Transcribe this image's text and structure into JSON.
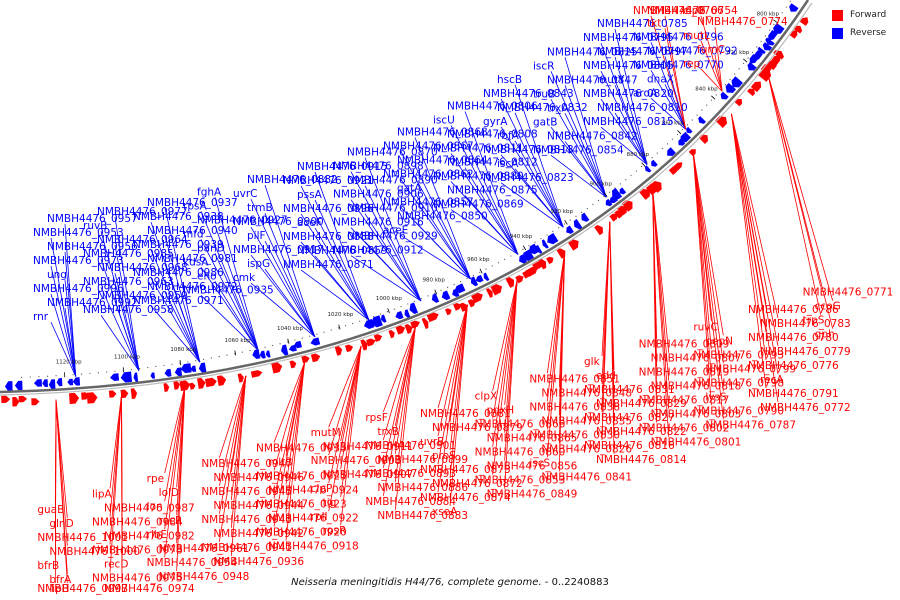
{
  "legend": {
    "forward_label": "Forward",
    "reverse_label": "Reverse",
    "forward_color": "#ff0000",
    "reverse_color": "#0000ff"
  },
  "caption": {
    "species": "Neisseria meningitidis H44/76, complete genome.",
    "range": " - 0..2240883"
  },
  "scale": {
    "start_kbp": 1120,
    "end_kbp": 800,
    "step_kbp": 20,
    "unit": "kbp"
  },
  "genes_top": [
    "rnr",
    "NMBH4476_0992",
    "NMBH4476_0996",
    "ung",
    "NMBH4476_0973",
    "NMBH4476_0956",
    "NMBH4476_0953",
    "NMBH4476_0957",
    "NMBH4476_0958",
    "NMBH4476_0959",
    "NMBH4476_0963",
    "NMBH4476_0968",
    "NMBH4476_0985",
    "NMBH4476_0964",
    "ruvB",
    "NMBH4476_0977",
    "NMBH4476_0971",
    "NMBH4476_0972",
    "NMBH4476_0986",
    "NMBH4476_0981",
    "NMBH4476_0939",
    "NMBH4476_0940",
    "NMBH4476_0938",
    "NMBH4476_0937",
    "NMBH4476_0935",
    "eno",
    "kdsA",
    "panD",
    "mfd",
    "NMBH4476_0927",
    "rpsA",
    "fghA",
    "cmk",
    "ispG",
    "NMBH4476_0917",
    "pilF",
    "NMBH4476_0900",
    "trmB",
    "uvrC",
    "NMBH4476_0882",
    "NMBH4476_0871",
    "NMBH4476_0859",
    "NMBH4476_0888",
    "aceF",
    "NMBH4476_0896",
    "pssA",
    "NMBH4476_0921",
    "NMBH4476_0915",
    "NMBH4476_0912",
    "NMBH4476_0929",
    "NMBH4476_0916",
    "NMBH4476_0910",
    "NMBH4476_0906",
    "NMBH4476_0890",
    "NMBH4476_0898",
    "NMBH4476_0870",
    "aceE",
    "NMBH4476_0850",
    "NMBH4476_0857",
    "gatA",
    "NMBH4476_0862",
    "NMBH4476_0864",
    "NMBH4476_0867",
    "NMBH4476_0868",
    "NMBH4476_0869",
    "NMBH4476_0875",
    "NMBH4476_0880",
    "NMBH4476_0812",
    "NMBH4476_0811",
    "NMBH4476_0808",
    "iscU",
    "NMBH4476_0806",
    "NMBH4476_0823",
    "iscA",
    "NMBH4476_0813",
    "rbfA",
    "gyrA",
    "NMBH4476_0832",
    "NMBH4476_0843",
    "hscB",
    "NMBH4476_0854",
    "NMBH4476_0842",
    "gatB",
    "trxA",
    "truB",
    "NMBH4476_0847",
    "iscR",
    "NMBH4476_0825",
    "NMBH4476_0815",
    "NMBH4476_0810",
    "NMBH4476_0820",
    "mutY",
    "NMBH4476_0805",
    "NMBH4476_0797",
    "NMBH4476_0795",
    "NMBH4476_0785",
    "aroA",
    "dnaX",
    "NMBH4476_0770",
    "NMBH4476_0792",
    "NMBH4476_0796",
    "tkt",
    "NMBH4476_0766",
    "NMBH4476_0754",
    "rep",
    "fumC",
    "mutL",
    "NMBH4476_0774",
    "clpB"
  ],
  "genes_bottom": [
    "guaB",
    "glnD",
    "NMBH4476_1001",
    "NMBH4476_1000",
    "bfrB",
    "bfrA",
    "NMBH4476_0997",
    "lipB",
    "lipA",
    "NMBH4476_0987",
    "NMBH4476_0984",
    "NMBH4476_0982",
    "NMBH4476_0978",
    "recD",
    "NMBH4476_0975",
    "NMBH4476_0974",
    "rpe",
    "lolD",
    "lon",
    "recR",
    "ribE",
    "NMBH4476_0961",
    "NMBH4476_0954",
    "NMBH4476_0948",
    "NMBH4476_0947",
    "NMBH4476_0946",
    "NMBH4476_0945",
    "NMBH4476_0944",
    "NMBH4476_0943",
    "NMBH4476_0942",
    "NMBH4476_0941",
    "NMBH4476_0936",
    "NMBH4476_0933",
    "mltB",
    "NMBH4476_0925",
    "NMBH4476_0924",
    "NMBH4476_0923",
    "NMBH4476_0922",
    "NMBH4476_0920",
    "NMBH4476_0918",
    "mutM",
    "NMBH4476_0911",
    "NMBH4476_0908",
    "NMBH4476_0907",
    "clpP",
    "tig",
    "rplI",
    "rpsR",
    "rpsF",
    "trxB",
    "NMBH4476_0901",
    "NMBH4476_0899",
    "NMBH4476_0893",
    "NMBH4476_0886",
    "NMBH4476_0884",
    "NMBH4476_0883",
    "NMBH4476_0881",
    "NMBH4476_0879",
    "uvrB",
    "proS",
    "NMBH4476_0873",
    "NMBH4476_0872",
    "NMBH4476_0874",
    "xseA",
    "clpX",
    "pdxH",
    "NMBH4476_0866",
    "NMBH4476_0865",
    "NMBH4476_0860",
    "NMBH4476_0856",
    "NMBH4476_0853",
    "NMBH4476_0849",
    "NMBH4476_0851",
    "NMBH4476_0848",
    "NMBH4476_0838",
    "NMBH4476_0835",
    "NMBH4476_0830",
    "NMBH4476_0826",
    "iscS",
    "NMBH4476_0841",
    "glk",
    "edd",
    "NMBH4476_0831",
    "NMBH4476_0829",
    "NMBH4476_0827",
    "NMBH4476_0822",
    "NMBH4476_0816",
    "NMBH4476_0814",
    "NMBH4476_0809",
    "NMBH4476_0807",
    "NMBH4476_0819",
    "NMBH4476_0818",
    "NMBH4476_0817",
    "NMBH4476_0803",
    "NMBH4476_0802",
    "NMBH4476_0801",
    "ruvC",
    "pepN",
    "NMBH4476_0793",
    "NMBH4476_0799",
    "NMBH4476_0798",
    "lysS",
    "NMBH4476_0790",
    "NMBH4476_0787",
    "NMBH4476_0786",
    "NMBH4476_0783",
    "NMBH4476_0780",
    "NMBH4476_0779",
    "NMBH4476_0776",
    "recA",
    "NMBH4476_0791",
    "NMBH4476_0772",
    "NMBH4476_0771",
    "ccoG",
    "trpS",
    "gph"
  ],
  "genes_top_strand": {
    "red": [
      "tkt",
      "NMBH4476_0766",
      "NMBH4476_0754",
      "rep",
      "fumC",
      "mutL",
      "NMBH4476_0774",
      "clpB"
    ]
  }
}
